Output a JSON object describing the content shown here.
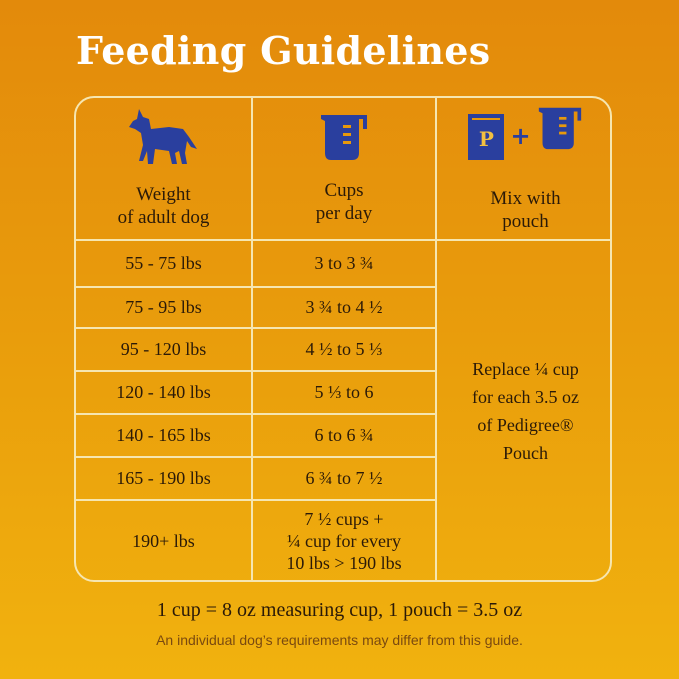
{
  "title": "Feeding Guidelines",
  "colors": {
    "icon": "#2a3f9e",
    "lines": "#f6e6b0",
    "title": "#ffffff",
    "text": "#2b1a08"
  },
  "headers": [
    {
      "icon": "dog-icon",
      "line1": "Weight",
      "line2": "of adult dog"
    },
    {
      "icon": "measuring-cup-icon",
      "line1": "Cups",
      "line2": "per day"
    },
    {
      "icon": "pouch-plus-cup-icon",
      "line1": "Mix with",
      "line2": "pouch",
      "pouch_letter": "P",
      "plus": "+"
    }
  ],
  "rows": [
    {
      "weight": "55 - 75 lbs",
      "cups": "3 to 3 ¾"
    },
    {
      "weight": "75 - 95 lbs",
      "cups": "3 ¾ to 4 ½"
    },
    {
      "weight": "95 - 120 lbs",
      "cups": "4 ½ to 5 ⅓"
    },
    {
      "weight": "120 - 140 lbs",
      "cups": "5 ⅓ to 6"
    },
    {
      "weight": "140 - 165 lbs",
      "cups": "6 to 6 ¾"
    },
    {
      "weight": "165 - 190 lbs",
      "cups": "6 ¾ to 7 ½"
    },
    {
      "weight": "190+ lbs",
      "cups_line1": "7 ½ cups +",
      "cups_line2": "¼ cup for every",
      "cups_line3": "10 lbs > 190 lbs"
    }
  ],
  "mix": {
    "line1": "Replace ¼ cup",
    "line2": "for each 3.5 oz",
    "line3": "of Pedigree®",
    "line4": "Pouch"
  },
  "footer": {
    "conversion": "1 cup = 8 oz measuring cup, 1 pouch = 3.5 oz",
    "disclaimer": "An individual dog’s requirements may differ from this guide."
  }
}
